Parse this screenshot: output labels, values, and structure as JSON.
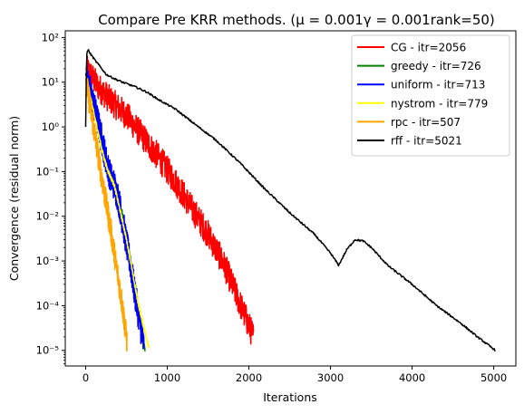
{
  "chart_data": {
    "type": "line",
    "title": "Compare Pre KRR methods. (μ = 0.001γ = 0.001rank=50)",
    "xlabel": "Iterations",
    "ylabel": "Convergence (residual norm)",
    "xlim": [
      -250,
      5271
    ],
    "ylim_log10": [
      -5.35,
      2.15
    ],
    "y_scale": "log",
    "xticks": [
      0,
      1000,
      2000,
      3000,
      4000,
      5000
    ],
    "yticks": [
      {
        "exp": 2,
        "label": "10²"
      },
      {
        "exp": 1,
        "label": "10¹"
      },
      {
        "exp": 0,
        "label": "10⁰"
      },
      {
        "exp": -1,
        "label": "10⁻¹"
      },
      {
        "exp": -2,
        "label": "10⁻²"
      },
      {
        "exp": -3,
        "label": "10⁻³"
      },
      {
        "exp": -4,
        "label": "10⁻⁴"
      },
      {
        "exp": -5,
        "label": "10⁻⁵"
      }
    ],
    "grid": false,
    "legend_position": "top-right",
    "series": [
      {
        "name": "CG - itr=2056",
        "color": "#ff0000",
        "noise_log10": 0.32,
        "x": [
          0,
          50,
          150,
          300,
          500,
          700,
          900,
          1100,
          1300,
          1500,
          1700,
          1900,
          2056
        ],
        "y": [
          20,
          16,
          8,
          4,
          1.8,
          0.6,
          0.2,
          0.06,
          0.015,
          0.004,
          0.0008,
          0.0001,
          2e-05
        ]
      },
      {
        "name": "greedy - itr=726",
        "color": "#008000",
        "noise_log10": 0.12,
        "x": [
          0,
          40,
          100,
          150,
          200,
          260,
          300,
          350,
          400,
          450,
          500,
          550,
          600,
          650,
          700,
          726
        ],
        "y": [
          15,
          8,
          2.5,
          1.0,
          0.35,
          0.11,
          0.08,
          0.06,
          0.03,
          0.01,
          0.003,
          0.001,
          0.0003,
          8e-05,
          2e-05,
          1.2e-05
        ]
      },
      {
        "name": "uniform - itr=713",
        "color": "#0000ff",
        "noise_log10": 0.35,
        "x": [
          0,
          40,
          100,
          150,
          200,
          260,
          300,
          350,
          400,
          450,
          500,
          550,
          600,
          650,
          713
        ],
        "y": [
          16,
          8,
          3,
          1.3,
          0.5,
          0.15,
          0.08,
          0.05,
          0.025,
          0.008,
          0.0025,
          0.0008,
          0.0002,
          6e-05,
          1.2e-05
        ]
      },
      {
        "name": "nystrom - itr=779",
        "color": "#ffff00",
        "noise_log10": 0.05,
        "x": [
          0,
          40,
          100,
          150,
          200,
          260,
          300,
          350,
          400,
          450,
          500,
          550,
          600,
          650,
          700,
          779
        ],
        "y": [
          14,
          7,
          2,
          0.8,
          0.3,
          0.12,
          0.08,
          0.05,
          0.02,
          0.008,
          0.003,
          0.001,
          0.0003,
          0.0001,
          4e-05,
          1.1e-05
        ]
      },
      {
        "name": "rpc - itr=507",
        "color": "#ffa500",
        "noise_log10": 0.3,
        "x": [
          0,
          40,
          100,
          150,
          200,
          250,
          300,
          350,
          400,
          450,
          507
        ],
        "y": [
          12,
          4,
          0.9,
          0.25,
          0.07,
          0.02,
          0.006,
          0.0015,
          0.0004,
          0.0001,
          1.5e-05
        ]
      },
      {
        "name": "rff - itr=5021",
        "color": "#000000",
        "noise_log10": 0.02,
        "x": [
          0,
          10,
          30,
          50,
          80,
          120,
          180,
          250,
          350,
          450,
          600,
          750,
          900,
          1100,
          1300,
          1600,
          1900,
          2200,
          2500,
          2800,
          3000,
          3100,
          3200,
          3300,
          3400,
          3500,
          3700,
          4000,
          4300,
          4600,
          4800,
          5021
        ],
        "y": [
          1,
          40,
          55,
          45,
          38,
          30,
          22,
          15,
          12,
          10,
          8,
          6,
          4,
          2.5,
          1.3,
          0.5,
          0.15,
          0.04,
          0.012,
          0.004,
          0.0015,
          0.0008,
          0.0018,
          0.003,
          0.0028,
          0.002,
          0.0008,
          0.0003,
          0.0001,
          4e-05,
          2e-05,
          1e-05
        ]
      }
    ]
  }
}
